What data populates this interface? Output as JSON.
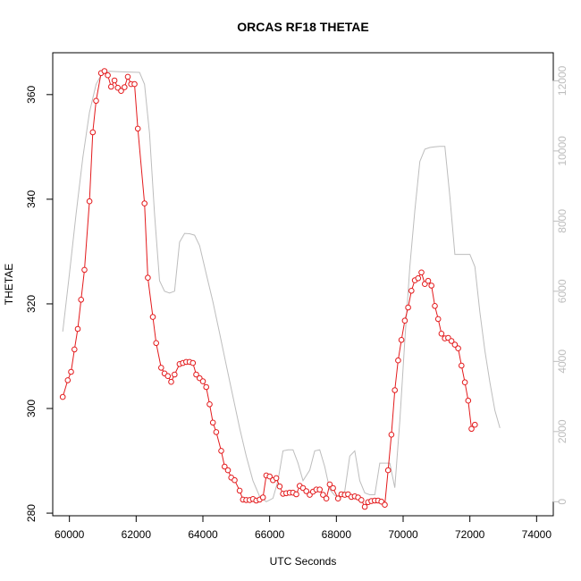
{
  "chart_data": {
    "type": "line",
    "title": "ORCAS RF18 THETAE",
    "xlabel": "UTC Seconds",
    "ylabel": "THETAE",
    "xlim": [
      59500,
      74500
    ],
    "ylim": [
      279.5,
      368
    ],
    "y2lim": [
      -400,
      12800
    ],
    "x_ticks": [
      60000,
      62000,
      64000,
      66000,
      68000,
      70000,
      72000,
      74000
    ],
    "y_ticks": [
      280,
      300,
      320,
      340,
      360
    ],
    "y2_ticks": [
      0,
      2000,
      4000,
      6000,
      8000,
      10000,
      12000
    ],
    "grid": false,
    "legend": "none",
    "series": [
      {
        "color": "#e31a1c",
        "style": "points-and-line",
        "axis": "left",
        "points": [
          [
            59800,
            302.2
          ],
          [
            59950,
            305.4
          ],
          [
            60050,
            307.0
          ],
          [
            60150,
            311.3
          ],
          [
            60250,
            315.2
          ],
          [
            60350,
            320.8
          ],
          [
            60450,
            326.5
          ],
          [
            60600,
            339.6
          ],
          [
            60700,
            352.8
          ],
          [
            60800,
            358.8
          ],
          [
            60950,
            364.1
          ],
          [
            61050,
            364.5
          ],
          [
            61150,
            363.7
          ],
          [
            61250,
            361.5
          ],
          [
            61350,
            362.7
          ],
          [
            61450,
            361.3
          ],
          [
            61550,
            360.7
          ],
          [
            61650,
            361.4
          ],
          [
            61750,
            363.4
          ],
          [
            61850,
            362.0
          ],
          [
            61950,
            362.0
          ],
          [
            62050,
            353.5
          ],
          [
            62250,
            339.2
          ],
          [
            62350,
            325.0
          ],
          [
            62500,
            317.5
          ],
          [
            62600,
            312.5
          ],
          [
            62750,
            307.8
          ],
          [
            62850,
            306.7
          ],
          [
            62950,
            306.2
          ],
          [
            63050,
            305.1
          ],
          [
            63150,
            306.5
          ],
          [
            63300,
            308.5
          ],
          [
            63400,
            308.7
          ],
          [
            63500,
            308.9
          ],
          [
            63600,
            308.9
          ],
          [
            63700,
            308.7
          ],
          [
            63800,
            306.5
          ],
          [
            63900,
            305.8
          ],
          [
            64000,
            305.2
          ],
          [
            64100,
            304.1
          ],
          [
            64200,
            300.8
          ],
          [
            64300,
            297.3
          ],
          [
            64400,
            295.5
          ],
          [
            64550,
            291.9
          ],
          [
            64650,
            288.9
          ],
          [
            64750,
            288.2
          ],
          [
            64850,
            286.8
          ],
          [
            64950,
            286.3
          ],
          [
            65100,
            284.3
          ],
          [
            65200,
            282.6
          ],
          [
            65300,
            282.5
          ],
          [
            65400,
            282.5
          ],
          [
            65500,
            282.7
          ],
          [
            65600,
            282.4
          ],
          [
            65700,
            282.6
          ],
          [
            65800,
            283.0
          ],
          [
            65900,
            287.2
          ],
          [
            66000,
            287.0
          ],
          [
            66100,
            286.3
          ],
          [
            66200,
            286.7
          ],
          [
            66300,
            285.1
          ],
          [
            66400,
            283.7
          ],
          [
            66500,
            283.8
          ],
          [
            66600,
            283.9
          ],
          [
            66700,
            283.9
          ],
          [
            66800,
            283.6
          ],
          [
            66900,
            285.2
          ],
          [
            67000,
            284.8
          ],
          [
            67100,
            284.2
          ],
          [
            67200,
            283.5
          ],
          [
            67300,
            284.1
          ],
          [
            67400,
            284.5
          ],
          [
            67500,
            284.5
          ],
          [
            67600,
            283.5
          ],
          [
            67700,
            282.8
          ],
          [
            67800,
            285.5
          ],
          [
            67900,
            284.8
          ],
          [
            68050,
            282.8
          ],
          [
            68150,
            283.6
          ],
          [
            68250,
            283.5
          ],
          [
            68350,
            283.6
          ],
          [
            68450,
            283.1
          ],
          [
            68550,
            283.2
          ],
          [
            68650,
            283.0
          ],
          [
            68750,
            282.5
          ],
          [
            68850,
            281.2
          ],
          [
            68950,
            282.1
          ],
          [
            69050,
            282.3
          ],
          [
            69150,
            282.4
          ],
          [
            69250,
            282.4
          ],
          [
            69350,
            282.2
          ],
          [
            69450,
            281.6
          ],
          [
            69550,
            288.2
          ],
          [
            69650,
            295.0
          ],
          [
            69750,
            303.5
          ],
          [
            69850,
            309.2
          ],
          [
            69950,
            313.1
          ],
          [
            70050,
            316.8
          ],
          [
            70150,
            319.3
          ],
          [
            70250,
            322.5
          ],
          [
            70350,
            324.5
          ],
          [
            70450,
            324.9
          ],
          [
            70550,
            326.0
          ],
          [
            70650,
            323.8
          ],
          [
            70750,
            324.4
          ],
          [
            70850,
            323.5
          ],
          [
            70950,
            319.6
          ],
          [
            71050,
            317.1
          ],
          [
            71150,
            314.3
          ],
          [
            71250,
            313.4
          ],
          [
            71350,
            313.5
          ],
          [
            71450,
            312.9
          ],
          [
            71550,
            312.2
          ],
          [
            71650,
            311.5
          ],
          [
            71750,
            308.2
          ],
          [
            71850,
            305.0
          ],
          [
            71950,
            301.5
          ],
          [
            72050,
            296.1
          ],
          [
            72150,
            296.9
          ]
        ]
      },
      {
        "color": "#bdbdbd",
        "style": "line",
        "axis": "right",
        "points": [
          [
            59800,
            4850
          ],
          [
            60000,
            6500
          ],
          [
            60200,
            8200
          ],
          [
            60400,
            9800
          ],
          [
            60600,
            11100
          ],
          [
            60800,
            11900
          ],
          [
            61000,
            12250
          ],
          [
            61200,
            12270
          ],
          [
            61500,
            12260
          ],
          [
            61800,
            12250
          ],
          [
            62100,
            12240
          ],
          [
            62250,
            11900
          ],
          [
            62400,
            10500
          ],
          [
            62550,
            8200
          ],
          [
            62700,
            6300
          ],
          [
            62850,
            6000
          ],
          [
            63000,
            5950
          ],
          [
            63150,
            6000
          ],
          [
            63300,
            7400
          ],
          [
            63450,
            7650
          ],
          [
            63600,
            7640
          ],
          [
            63750,
            7600
          ],
          [
            63900,
            7300
          ],
          [
            64100,
            6500
          ],
          [
            64300,
            5700
          ],
          [
            64500,
            4800
          ],
          [
            64700,
            3900
          ],
          [
            64900,
            3000
          ],
          [
            65100,
            2100
          ],
          [
            65300,
            1300
          ],
          [
            65500,
            600
          ],
          [
            65700,
            150
          ],
          [
            65900,
            0
          ],
          [
            66100,
            100
          ],
          [
            66250,
            600
          ],
          [
            66400,
            1450
          ],
          [
            66550,
            1480
          ],
          [
            66700,
            1480
          ],
          [
            66850,
            1100
          ],
          [
            67000,
            600
          ],
          [
            67200,
            900
          ],
          [
            67350,
            1450
          ],
          [
            67500,
            1480
          ],
          [
            67650,
            1000
          ],
          [
            67800,
            350
          ],
          [
            67950,
            180
          ],
          [
            68100,
            150
          ],
          [
            68250,
            300
          ],
          [
            68400,
            1300
          ],
          [
            68550,
            1450
          ],
          [
            68700,
            600
          ],
          [
            68850,
            250
          ],
          [
            69000,
            200
          ],
          [
            69150,
            200
          ],
          [
            69300,
            1100
          ],
          [
            69450,
            1100
          ],
          [
            69600,
            1100
          ],
          [
            69750,
            400
          ],
          [
            69900,
            2300
          ],
          [
            70050,
            4600
          ],
          [
            70200,
            6700
          ],
          [
            70350,
            8300
          ],
          [
            70500,
            9700
          ],
          [
            70650,
            10050
          ],
          [
            70800,
            10100
          ],
          [
            70950,
            10120
          ],
          [
            71100,
            10130
          ],
          [
            71250,
            10130
          ],
          [
            71400,
            8700
          ],
          [
            71550,
            7050
          ],
          [
            71700,
            7050
          ],
          [
            71850,
            7050
          ],
          [
            72000,
            7050
          ],
          [
            72150,
            6700
          ],
          [
            72300,
            5400
          ],
          [
            72450,
            4300
          ],
          [
            72600,
            3400
          ],
          [
            72750,
            2600
          ],
          [
            72900,
            2100
          ]
        ]
      }
    ]
  }
}
